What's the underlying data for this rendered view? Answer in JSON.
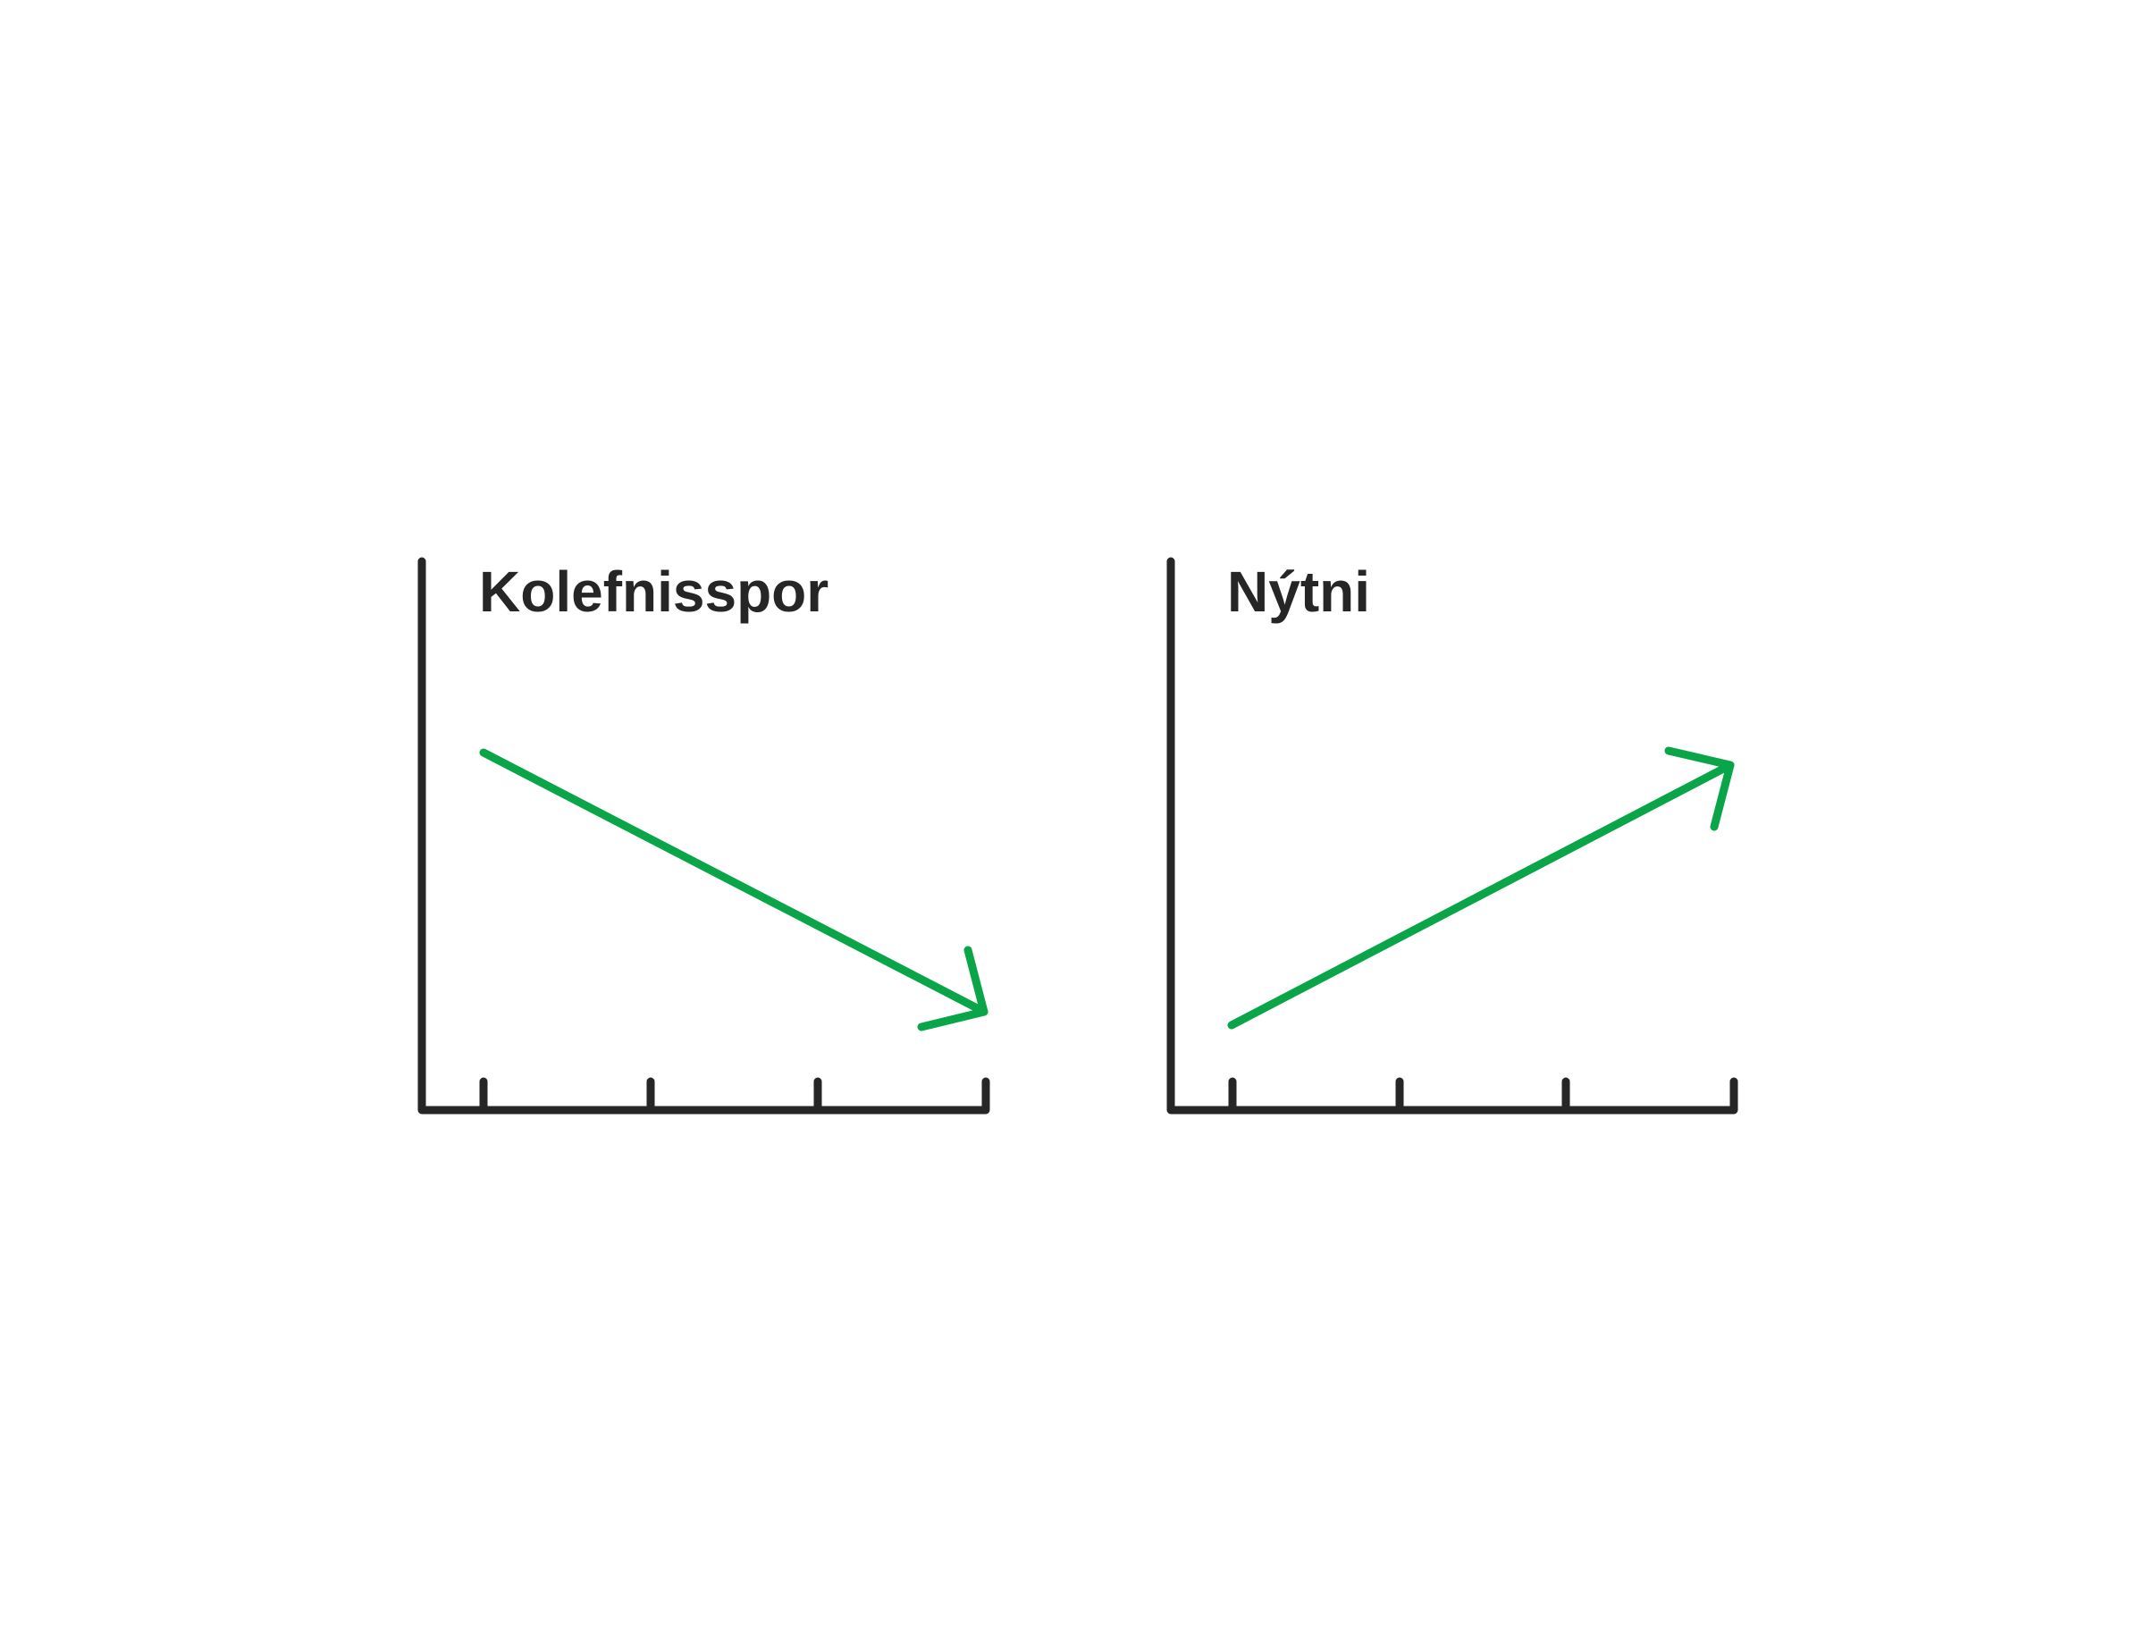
{
  "colors": {
    "axis": "#262626",
    "arrow": "#0aa548",
    "background": "#ffffff",
    "text": "#262626"
  },
  "panels": [
    {
      "title": "Kolefnisspor",
      "trend": "decreasing",
      "arrow_icon": "down-right-arrow-icon",
      "tick_count": 4
    },
    {
      "title": "Nýtni",
      "trend": "increasing",
      "arrow_icon": "up-right-arrow-icon",
      "tick_count": 4
    }
  ]
}
